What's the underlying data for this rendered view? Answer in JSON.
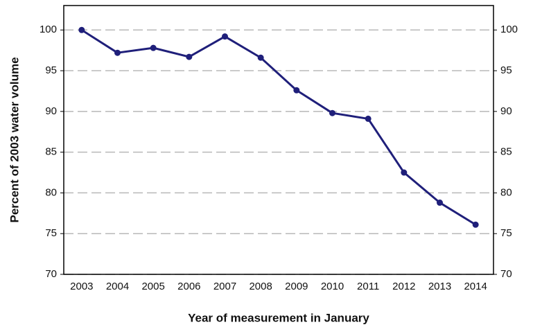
{
  "chart_data": {
    "type": "line",
    "x_label": "Year of measurement in January",
    "y_label": "Percent of 2003 water volume",
    "categories": [
      "2003",
      "2004",
      "2005",
      "2006",
      "2007",
      "2008",
      "2009",
      "2010",
      "2011",
      "2012",
      "2013",
      "2014"
    ],
    "series": [
      {
        "color": "#1f1f7a",
        "values": [
          100,
          97.2,
          97.8,
          96.7,
          99.2,
          96.6,
          92.6,
          89.8,
          89.1,
          82.5,
          78.8,
          76.1
        ]
      }
    ],
    "ylim": [
      70,
      103
    ],
    "yticks": [
      70,
      75,
      80,
      85,
      90,
      95,
      100
    ],
    "y2lim": [
      70,
      103
    ],
    "y2ticks": [
      70,
      75,
      80,
      85,
      90,
      95,
      100
    ],
    "grid": true
  }
}
